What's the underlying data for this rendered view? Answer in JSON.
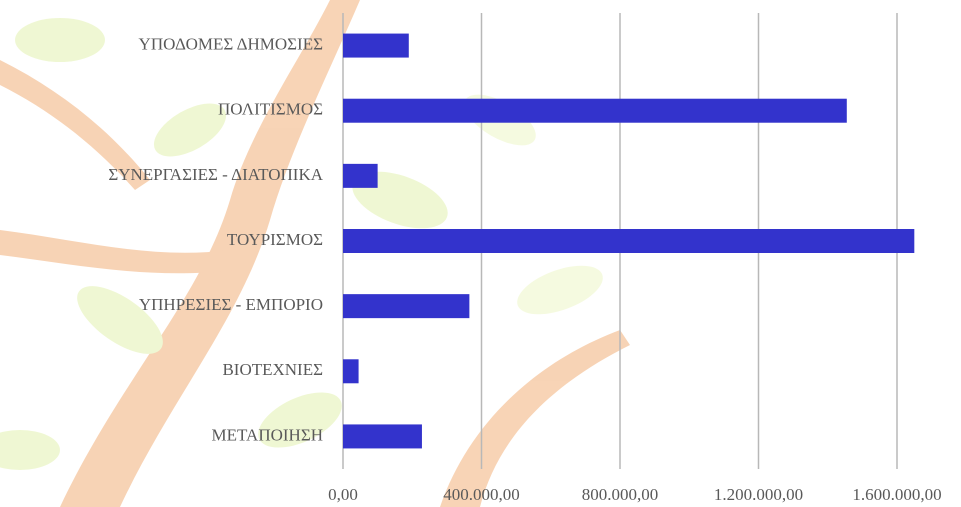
{
  "chart_data": {
    "type": "bar",
    "orientation": "horizontal",
    "categories": [
      "ΥΠΟΔΟΜΕΣ ΔΗΜΟΣΙΕΣ",
      "ΠΟΛΙΤΙΣΜΟΣ",
      "ΣΥΝΕΡΓΑΣΙΕΣ - ΔΙΑΤΟΠΙΚΑ",
      "ΤΟΥΡΙΣΜΟΣ",
      "ΥΠΗΡΕΣΙΕΣ - ΕΜΠΟΡΙΟ",
      "ΒΙΟΤΕΧΝΙΕΣ",
      "ΜΕΤΑΠΟΙΗΣΗ"
    ],
    "values": [
      190000,
      1455000,
      100000,
      1650000,
      365000,
      45000,
      228000
    ],
    "color": "#3333cc",
    "xlim": [
      0,
      1600000
    ],
    "xticks": [
      {
        "value": 0,
        "label": "0,00"
      },
      {
        "value": 400000,
        "label": "400.000,00"
      },
      {
        "value": 800000,
        "label": "800.000,00"
      },
      {
        "value": 1200000,
        "label": "1.200.000,00"
      },
      {
        "value": 1600000,
        "label": "1.600.000,00"
      }
    ],
    "grid": true
  }
}
